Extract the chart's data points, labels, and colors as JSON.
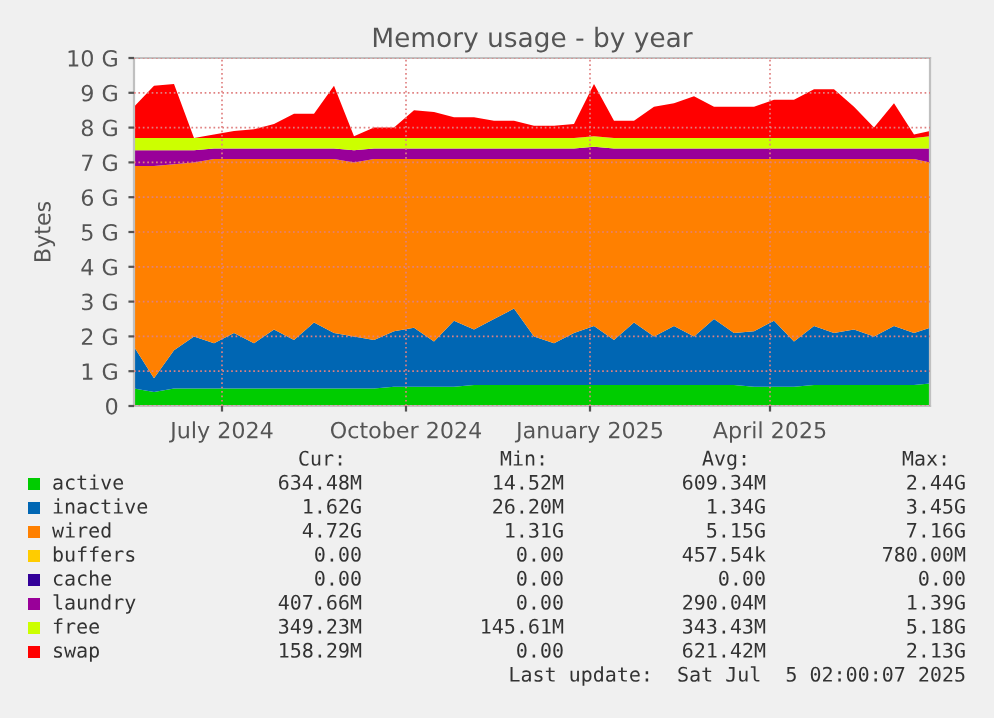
{
  "chart_data": {
    "type": "area",
    "stacked": true,
    "title": "Memory usage - by year",
    "ylabel": "Bytes",
    "x": [
      "2024-06-02",
      "2024-06-12",
      "2024-06-22",
      "2024-07-02",
      "2024-07-12",
      "2024-07-22",
      "2024-08-01",
      "2024-08-11",
      "2024-08-21",
      "2024-08-31",
      "2024-09-10",
      "2024-09-20",
      "2024-09-30",
      "2024-10-10",
      "2024-10-20",
      "2024-10-30",
      "2024-11-09",
      "2024-11-19",
      "2024-11-29",
      "2024-12-09",
      "2024-12-19",
      "2024-12-29",
      "2025-01-08",
      "2025-01-18",
      "2025-01-28",
      "2025-02-07",
      "2025-02-17",
      "2025-02-27",
      "2025-03-09",
      "2025-03-19",
      "2025-03-29",
      "2025-04-08",
      "2025-04-18",
      "2025-04-28",
      "2025-05-08",
      "2025-05-18",
      "2025-05-28",
      "2025-06-07",
      "2025-06-17",
      "2025-06-27",
      "2025-07-05"
    ],
    "series": [
      {
        "name": "active",
        "color": "#00cc00",
        "values": [
          0.5,
          0.4,
          0.5,
          0.5,
          0.5,
          0.5,
          0.5,
          0.5,
          0.5,
          0.5,
          0.5,
          0.5,
          0.5,
          0.55,
          0.55,
          0.55,
          0.55,
          0.6,
          0.6,
          0.6,
          0.6,
          0.6,
          0.6,
          0.6,
          0.6,
          0.6,
          0.6,
          0.6,
          0.6,
          0.6,
          0.6,
          0.55,
          0.55,
          0.55,
          0.6,
          0.6,
          0.6,
          0.6,
          0.6,
          0.6,
          0.65
        ]
      },
      {
        "name": "inactive",
        "color": "#0066b3",
        "values": [
          1.2,
          0.4,
          1.1,
          1.5,
          1.3,
          1.6,
          1.3,
          1.7,
          1.4,
          1.9,
          1.6,
          1.5,
          1.4,
          1.6,
          1.7,
          1.3,
          1.9,
          1.6,
          1.9,
          2.2,
          1.4,
          1.2,
          1.5,
          1.7,
          1.3,
          1.8,
          1.4,
          1.7,
          1.4,
          1.9,
          1.5,
          1.6,
          1.9,
          1.3,
          1.7,
          1.5,
          1.6,
          1.4,
          1.7,
          1.5,
          1.6
        ]
      },
      {
        "name": "wired",
        "color": "#ff8000",
        "values": [
          5.2,
          6.1,
          5.35,
          5.0,
          5.3,
          5.0,
          5.3,
          4.9,
          5.2,
          4.7,
          5.0,
          5.0,
          5.2,
          4.95,
          4.85,
          5.25,
          4.65,
          4.9,
          4.6,
          4.3,
          5.1,
          5.3,
          5.0,
          4.8,
          5.2,
          4.7,
          5.1,
          4.8,
          5.1,
          4.6,
          5.0,
          4.95,
          4.65,
          5.25,
          4.8,
          5.0,
          4.9,
          5.1,
          4.8,
          5.0,
          4.75
        ]
      },
      {
        "name": "buffers",
        "color": "#ffcc00",
        "values": [
          null,
          null,
          null,
          null,
          null,
          null,
          null,
          null,
          null,
          null,
          null,
          null,
          null,
          null,
          null,
          null,
          null,
          null,
          null,
          null,
          null,
          null,
          null,
          null,
          null,
          null,
          null,
          null,
          null,
          null,
          null,
          null,
          null,
          null,
          null,
          null,
          null,
          null,
          null,
          null,
          null
        ]
      },
      {
        "name": "cache",
        "color": "#330099",
        "values": [
          null,
          null,
          null,
          null,
          null,
          null,
          null,
          null,
          null,
          null,
          null,
          null,
          null,
          null,
          null,
          null,
          null,
          null,
          null,
          null,
          null,
          null,
          null,
          null,
          null,
          null,
          null,
          null,
          null,
          null,
          null,
          null,
          null,
          null,
          null,
          null,
          null,
          null,
          null,
          null,
          null
        ]
      },
      {
        "name": "laundry",
        "color": "#990099",
        "values": [
          0.45,
          0.45,
          0.4,
          0.35,
          0.3,
          0.3,
          0.3,
          0.3,
          0.3,
          0.3,
          0.3,
          0.35,
          0.3,
          0.3,
          0.3,
          0.3,
          0.3,
          0.3,
          0.3,
          0.3,
          0.3,
          0.3,
          0.3,
          0.35,
          0.3,
          0.3,
          0.3,
          0.3,
          0.3,
          0.3,
          0.3,
          0.3,
          0.3,
          0.3,
          0.3,
          0.3,
          0.3,
          0.3,
          0.3,
          0.3,
          0.4
        ]
      },
      {
        "name": "free",
        "color": "#ccff00",
        "values": [
          0.35,
          0.35,
          0.35,
          0.35,
          0.3,
          0.3,
          0.3,
          0.3,
          0.3,
          0.3,
          0.3,
          0.35,
          0.3,
          0.3,
          0.3,
          0.3,
          0.3,
          0.3,
          0.3,
          0.3,
          0.3,
          0.3,
          0.3,
          0.3,
          0.3,
          0.3,
          0.3,
          0.3,
          0.3,
          0.3,
          0.3,
          0.3,
          0.3,
          0.3,
          0.3,
          0.3,
          0.3,
          0.3,
          0.3,
          0.3,
          0.35
        ]
      },
      {
        "name": "swap",
        "color": "#ff0000",
        "values": [
          0.9,
          1.5,
          1.55,
          0.0,
          0.1,
          0.2,
          0.25,
          0.4,
          0.7,
          0.7,
          1.5,
          0.05,
          0.3,
          0.3,
          0.8,
          0.75,
          0.6,
          0.6,
          0.5,
          0.5,
          0.35,
          0.35,
          0.4,
          1.5,
          0.5,
          0.5,
          0.9,
          1.0,
          1.2,
          0.9,
          0.9,
          0.9,
          1.1,
          1.1,
          1.4,
          1.4,
          0.9,
          0.3,
          1.0,
          0.1,
          0.15
        ]
      }
    ],
    "xlim": [
      "2024-06-02",
      "2025-07-05"
    ],
    "xticks": [
      {
        "value": "2024-07-16",
        "label": "July 2024"
      },
      {
        "value": "2024-10-16",
        "label": "October 2024"
      },
      {
        "value": "2025-01-16",
        "label": "January 2025"
      },
      {
        "value": "2025-04-16",
        "label": "April 2025"
      }
    ],
    "ylim": [
      0,
      10
    ],
    "yticks": [
      0,
      {
        "value": 1,
        "label": "1 G"
      },
      {
        "value": 2,
        "label": "2 G"
      },
      {
        "value": 3,
        "label": "3 G"
      },
      {
        "value": 4,
        "label": "4 G"
      },
      {
        "value": 5,
        "label": "5 G"
      },
      {
        "value": 6,
        "label": "6 G"
      },
      {
        "value": 7,
        "label": "7 G"
      },
      {
        "value": 8,
        "label": "8 G"
      },
      {
        "value": 9,
        "label": "9 G"
      },
      {
        "value": 10,
        "label": "10 G"
      }
    ],
    "grid": true,
    "legend": "bottom",
    "annotations": [
      "Cur:",
      "Min:",
      "Avg:",
      "Max:",
      "634.48M",
      "14.52M",
      "609.34M",
      "2.44G",
      "1.62G",
      "26.20M",
      "1.34G",
      "3.45G",
      "4.72G",
      "1.31G",
      "5.15G",
      "7.16G",
      "0.00",
      "0.00",
      "457.54k",
      "780.00M",
      "0.00",
      "0.00",
      "0.00",
      "0.00",
      "407.66M",
      "0.00",
      "290.04M",
      "1.39G",
      "349.23M",
      "145.61M",
      "343.43M",
      "5.18G",
      "158.29M",
      "0.00",
      "621.42M",
      "2.13G",
      "Last update:  Sat Jul  5 02:00:07 2025"
    ]
  }
}
